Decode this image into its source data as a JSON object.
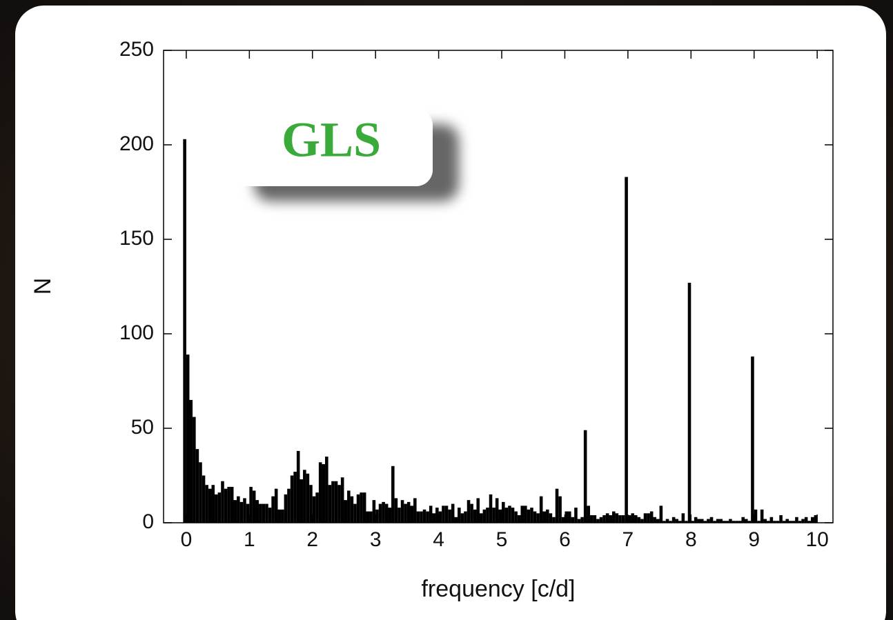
{
  "chart_data": {
    "type": "histogram",
    "xlabel": "frequency [c/d]",
    "ylabel": "N",
    "annotation": "GLS",
    "color": "#000000",
    "bins": [
      -0.05,
      0,
      0.05,
      0.1,
      0.15,
      0.2,
      0.25,
      0.3,
      0.35,
      0.4,
      0.45,
      0.5,
      0.55,
      0.6,
      0.65,
      0.7,
      0.75,
      0.8,
      0.85,
      0.9,
      0.95,
      1,
      1.05,
      1.1,
      1.15,
      1.2,
      1.25,
      1.3,
      1.35,
      1.4,
      1.45,
      1.5,
      1.55,
      1.6,
      1.65,
      1.7,
      1.75,
      1.8,
      1.85,
      1.9,
      1.95,
      2,
      2.05,
      2.1,
      2.15,
      2.2,
      2.25,
      2.3,
      2.35,
      2.4,
      2.45,
      2.5,
      2.55,
      2.6,
      2.65,
      2.7,
      2.75,
      2.8,
      2.85,
      2.9,
      2.95,
      3,
      3.05,
      3.1,
      3.15,
      3.2,
      3.25,
      3.3,
      3.35,
      3.4,
      3.45,
      3.5,
      3.55,
      3.6,
      3.65,
      3.7,
      3.75,
      3.8,
      3.85,
      3.9,
      3.95,
      4,
      4.05,
      4.1,
      4.15,
      4.2,
      4.25,
      4.3,
      4.35,
      4.4,
      4.45,
      4.5,
      4.55,
      4.6,
      4.65,
      4.7,
      4.75,
      4.8,
      4.85,
      4.9,
      4.95,
      5,
      5.05,
      5.1,
      5.15,
      5.2,
      5.25,
      5.3,
      5.35,
      5.4,
      5.45,
      5.5,
      5.55,
      5.6,
      5.65,
      5.7,
      5.75,
      5.8,
      5.85,
      5.9,
      5.95,
      6,
      6.05,
      6.1,
      6.15,
      6.2,
      6.25,
      6.3,
      6.35,
      6.4,
      6.45,
      6.5,
      6.55,
      6.6,
      6.65,
      6.7,
      6.75,
      6.8,
      6.85,
      6.9,
      6.95,
      7,
      7.05,
      7.1,
      7.15,
      7.2,
      7.25,
      7.3,
      7.35,
      7.4,
      7.45,
      7.5,
      7.55,
      7.6,
      7.65,
      7.7,
      7.75,
      7.8,
      7.85,
      7.9,
      7.95,
      8,
      8.05,
      8.1,
      8.15,
      8.2,
      8.25,
      8.3,
      8.35,
      8.4,
      8.45,
      8.5,
      8.55,
      8.6,
      8.65,
      8.7,
      8.75,
      8.8,
      8.85,
      8.9,
      8.95,
      9,
      9.05,
      9.1,
      9.15,
      9.2,
      9.25,
      9.3,
      9.35,
      9.4,
      9.45,
      9.5,
      9.55,
      9.6,
      9.65,
      9.7,
      9.75,
      9.8,
      9.85,
      9.9,
      9.95,
      10
    ],
    "values": [
      203,
      89,
      65,
      56,
      39,
      32,
      25,
      20,
      18,
      20,
      15,
      16,
      22,
      18,
      19,
      19,
      12,
      14,
      11,
      13,
      10,
      19,
      17,
      12,
      10,
      10,
      10,
      8,
      14,
      18,
      7,
      7,
      15,
      18,
      25,
      27,
      38,
      23,
      28,
      26,
      20,
      14,
      16,
      32,
      31,
      35,
      20,
      22,
      22,
      20,
      24,
      12,
      17,
      14,
      10,
      15,
      16,
      16,
      6,
      6,
      12,
      7,
      10,
      11,
      10,
      8,
      30,
      13,
      8,
      12,
      10,
      11,
      9,
      13,
      6,
      6,
      7,
      6,
      9,
      5,
      8,
      6,
      9,
      9,
      7,
      10,
      3,
      8,
      5,
      6,
      12,
      10,
      7,
      13,
      5,
      7,
      8,
      15,
      8,
      13,
      7,
      11,
      8,
      9,
      8,
      6,
      4,
      9,
      9,
      7,
      8,
      6,
      5,
      14,
      6,
      7,
      5,
      3,
      18,
      14,
      3,
      6,
      6,
      3,
      8,
      2,
      3,
      49,
      9,
      4,
      4,
      2,
      3,
      4,
      5,
      4,
      6,
      5,
      4,
      4,
      183,
      4,
      5,
      4,
      3,
      2,
      5,
      5,
      6,
      3,
      2,
      9,
      1,
      2,
      1,
      3,
      2,
      1,
      5,
      1,
      127,
      1,
      3,
      2,
      2,
      1,
      2,
      3,
      1,
      2,
      2,
      1,
      1,
      2,
      1,
      1,
      1,
      3,
      2,
      1,
      88,
      7,
      1,
      7,
      2,
      1,
      3,
      1,
      1,
      4,
      1,
      2,
      1,
      1,
      3,
      1,
      2,
      3,
      1,
      3,
      4
    ],
    "xlim": [
      -0.36,
      10.25
    ],
    "ylim": [
      0,
      250
    ],
    "xticks": [
      0,
      1,
      2,
      3,
      4,
      5,
      6,
      7,
      8,
      9,
      10
    ],
    "yticks": [
      0,
      50,
      100,
      150,
      200,
      250
    ]
  }
}
